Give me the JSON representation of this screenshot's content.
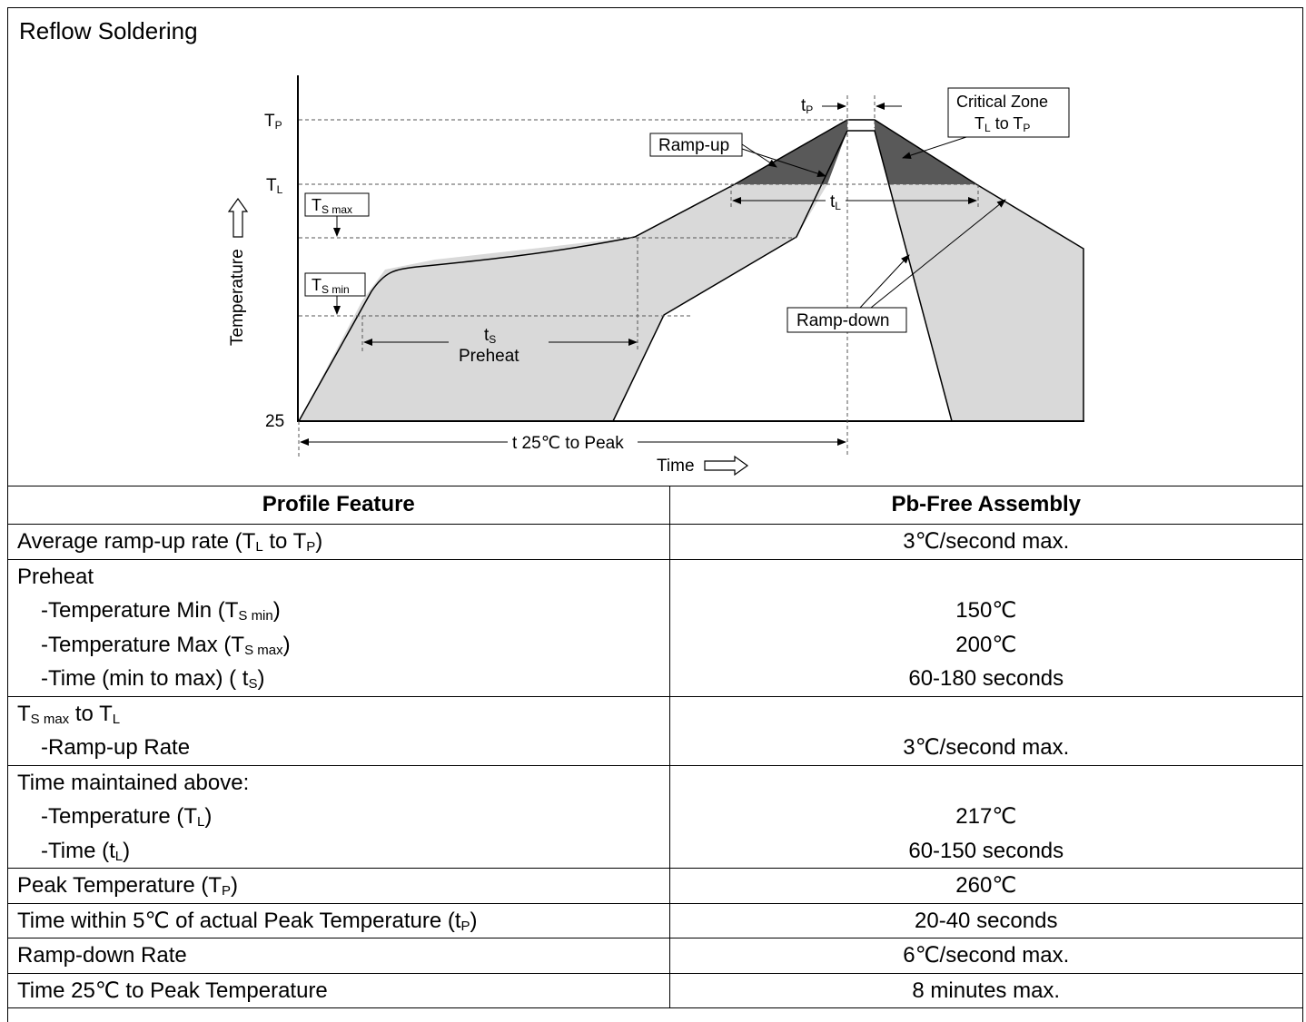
{
  "chart": {
    "title": "Reflow Soldering",
    "y_axis_label": "Temperature",
    "x_axis_label": "Time",
    "tick_tp": "T",
    "tick_tp_sub": "P",
    "tick_tl": "T",
    "tick_tl_sub": "L",
    "tick_25": "25",
    "ts_max_box": "T",
    "ts_max_box_sub": "S max",
    "ts_min_box": "T",
    "ts_min_box_sub": "S min",
    "ramp_up_label": "Ramp-up",
    "ramp_down_label": "Ramp-down",
    "critical_zone_line1": "Critical Zone",
    "critical_zone_line2_a": "T",
    "critical_zone_line2_a_sub": "L",
    "critical_zone_line2_b": " to T",
    "critical_zone_line2_b_sub": "P",
    "tp_label": "t",
    "tp_label_sub": "P",
    "tl_label": "t",
    "tl_label_sub": "L",
    "ts_label": "t",
    "ts_label_sub": "S",
    "preheat_label": "Preheat",
    "t25_label": "t 25℃ to Peak",
    "colors": {
      "critical": "#595959",
      "shade": "#d9d9d9"
    }
  },
  "table": {
    "header_feature": "Profile Feature",
    "header_assembly": "Pb-Free Assembly",
    "r1_a": "Average ramp-up rate (T",
    "r1_a_sub": "L",
    "r1_b": " to T",
    "r1_b_sub": "P",
    "r1_c": ")",
    "r1_value": "3℃/second max.",
    "r2_title": "Preheat",
    "r2_l1_a": "-Temperature Min (T",
    "r2_l1_sub": "S min",
    "r2_l1_b": ")",
    "r2_l2_a": "-Temperature Max (T",
    "r2_l2_sub": "S max",
    "r2_l2_b": ")",
    "r2_l3_a": "-Time (min to max) ( t",
    "r2_l3_sub": "S",
    "r2_l3_b": ")",
    "r2_v1": "150℃",
    "r2_v2": "200℃",
    "r2_v3": "60-180 seconds",
    "r3_t_a": "T",
    "r3_t_sub": "S max",
    "r3_t_b": " to T",
    "r3_t_sub2": "L",
    "r3_l1": "-Ramp-up Rate",
    "r3_v1": "3℃/second max.",
    "r4_title": "Time maintained above:",
    "r4_l1_a": "-Temperature (T",
    "r4_l1_sub": "L",
    "r4_l1_b": ")",
    "r4_l2_a": "-Time (t",
    "r4_l2_sub": "L",
    "r4_l2_b": ")",
    "r4_v1": "217℃",
    "r4_v2": "60-150 seconds",
    "r5_a": "Peak Temperature (T",
    "r5_sub": "P",
    "r5_b": ")",
    "r5_value": "260℃",
    "r6_a": "Time within 5℃ of actual Peak Temperature (t",
    "r6_sub": "P",
    "r6_b": ")",
    "r6_value": "20-40 seconds",
    "r7_label": "Ramp-down Rate",
    "r7_value": "6℃/second max.",
    "r8_label": "Time 25℃ to Peak Temperature",
    "r8_value": "8 minutes max."
  }
}
